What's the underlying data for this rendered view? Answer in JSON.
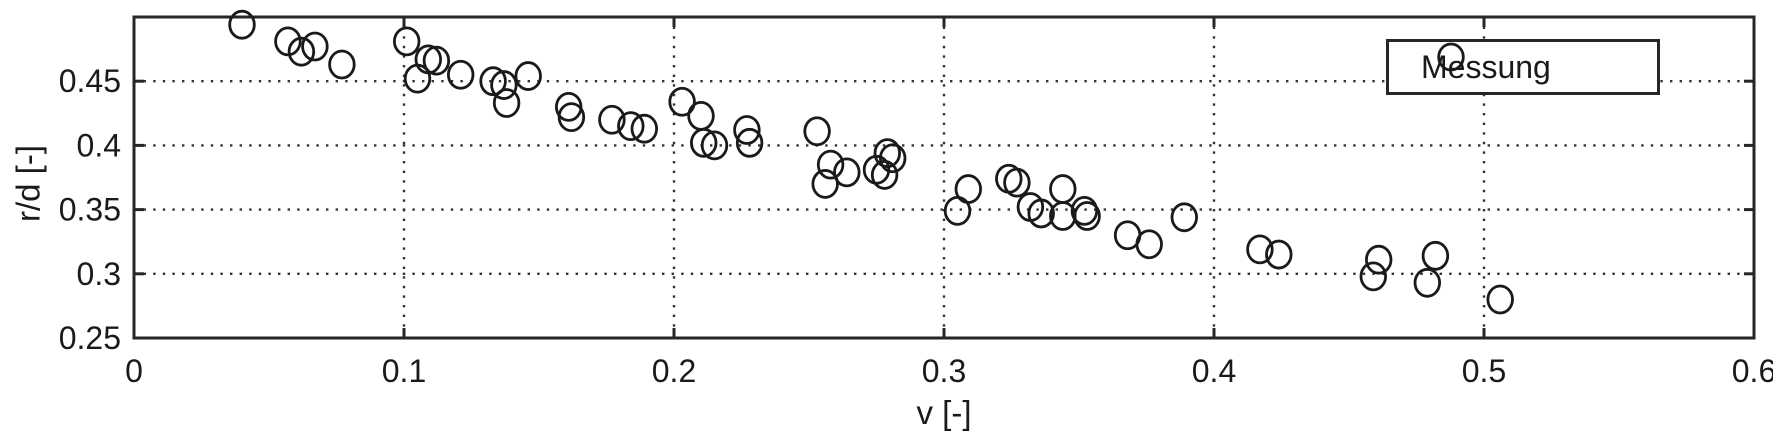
{
  "figure": {
    "background": "#ffffff",
    "axis_color": "#262626",
    "grid_color": "#333333",
    "marker_color": "#1a1a1a",
    "text_color": "#1a1a1a"
  },
  "legend": {
    "position": "top-right",
    "entries": [
      {
        "label": "Messung",
        "marker": "open-circle"
      }
    ]
  },
  "chart_data": {
    "type": "scatter",
    "title": "",
    "xlabel": "v [-]",
    "ylabel": "r/d [-]",
    "xlim": [
      0,
      0.6
    ],
    "ylim": [
      0.25,
      0.5
    ],
    "xticks": [
      0,
      0.1,
      0.2,
      0.3,
      0.4,
      0.5,
      0.6
    ],
    "xtick_labels": [
      "0",
      "0.1",
      "0.2",
      "0.3",
      "0.4",
      "0.5",
      "0.6"
    ],
    "yticks": [
      0.25,
      0.3,
      0.35,
      0.4,
      0.45,
      0.5
    ],
    "ytick_labels": [
      "0.25",
      "0.3",
      "0.35",
      "0.4",
      "0.45",
      ""
    ],
    "grid": "dotted",
    "grid_x": [
      0.1,
      0.2,
      0.3,
      0.4,
      0.5
    ],
    "grid_y": [
      0.3,
      0.35,
      0.4,
      0.45
    ],
    "legend_entries": [
      "Messung"
    ],
    "series": [
      {
        "name": "Messung",
        "marker": "open-circle",
        "points": [
          [
            0.04,
            0.494
          ],
          [
            0.057,
            0.481
          ],
          [
            0.062,
            0.473
          ],
          [
            0.067,
            0.477
          ],
          [
            0.077,
            0.463
          ],
          [
            0.101,
            0.481
          ],
          [
            0.105,
            0.452
          ],
          [
            0.109,
            0.467
          ],
          [
            0.112,
            0.466
          ],
          [
            0.121,
            0.455
          ],
          [
            0.133,
            0.45
          ],
          [
            0.137,
            0.447
          ],
          [
            0.138,
            0.433
          ],
          [
            0.146,
            0.454
          ],
          [
            0.161,
            0.43
          ],
          [
            0.162,
            0.422
          ],
          [
            0.177,
            0.42
          ],
          [
            0.184,
            0.415
          ],
          [
            0.189,
            0.413
          ],
          [
            0.203,
            0.434
          ],
          [
            0.21,
            0.423
          ],
          [
            0.211,
            0.402
          ],
          [
            0.215,
            0.4
          ],
          [
            0.227,
            0.412
          ],
          [
            0.228,
            0.402
          ],
          [
            0.253,
            0.411
          ],
          [
            0.256,
            0.37
          ],
          [
            0.258,
            0.385
          ],
          [
            0.264,
            0.379
          ],
          [
            0.275,
            0.381
          ],
          [
            0.278,
            0.377
          ],
          [
            0.279,
            0.394
          ],
          [
            0.281,
            0.39
          ],
          [
            0.305,
            0.349
          ],
          [
            0.309,
            0.366
          ],
          [
            0.324,
            0.374
          ],
          [
            0.327,
            0.371
          ],
          [
            0.332,
            0.352
          ],
          [
            0.336,
            0.347
          ],
          [
            0.344,
            0.366
          ],
          [
            0.344,
            0.345
          ],
          [
            0.352,
            0.349
          ],
          [
            0.353,
            0.345
          ],
          [
            0.368,
            0.33
          ],
          [
            0.376,
            0.323
          ],
          [
            0.389,
            0.344
          ],
          [
            0.417,
            0.319
          ],
          [
            0.424,
            0.315
          ],
          [
            0.459,
            0.298
          ],
          [
            0.461,
            0.311
          ],
          [
            0.479,
            0.293
          ],
          [
            0.482,
            0.314
          ],
          [
            0.506,
            0.28
          ]
        ]
      }
    ]
  }
}
